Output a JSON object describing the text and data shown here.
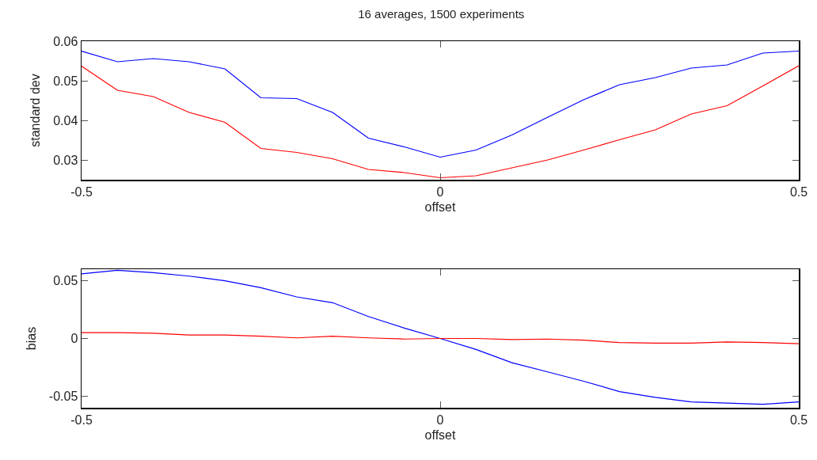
{
  "chart_data": [
    {
      "type": "line",
      "title": "16 averages, 1500 experiments",
      "xlabel": "offset",
      "ylabel": "standard dev",
      "x": [
        -0.5,
        -0.45,
        -0.4,
        -0.35,
        -0.3,
        -0.25,
        -0.2,
        -0.15,
        -0.1,
        -0.05,
        0,
        0.05,
        0.1,
        0.15,
        0.2,
        0.25,
        0.3,
        0.35,
        0.4,
        0.45,
        0.5
      ],
      "series": [
        {
          "color": "#0000ff",
          "values": [
            0.0575,
            0.0548,
            0.0556,
            0.0548,
            0.053,
            0.0457,
            0.0455,
            0.042,
            0.0355,
            0.0333,
            0.0307,
            0.0325,
            0.0363,
            0.0408,
            0.0452,
            0.049,
            0.0508,
            0.0532,
            0.054,
            0.057,
            0.0575
          ]
        },
        {
          "color": "#ff0000",
          "values": [
            0.0537,
            0.0476,
            0.046,
            0.042,
            0.0395,
            0.0329,
            0.0319,
            0.0303,
            0.0276,
            0.0268,
            0.0255,
            0.026,
            0.028,
            0.03,
            0.0325,
            0.0351,
            0.0376,
            0.0416,
            0.0437,
            0.0487,
            0.0538
          ]
        }
      ],
      "xlim": [
        -0.5,
        0.5
      ],
      "xticks": [
        -0.5,
        0,
        0.5
      ],
      "ylim": [
        0.025,
        0.06
      ],
      "yticks": [
        0.03,
        0.04,
        0.05,
        0.06
      ],
      "grid": false,
      "marker": "none",
      "line_style": "solid"
    },
    {
      "type": "line",
      "xlabel": "offset",
      "ylabel": "bias",
      "x": [
        -0.5,
        -0.45,
        -0.4,
        -0.35,
        -0.3,
        -0.25,
        -0.2,
        -0.15,
        -0.1,
        -0.05,
        0,
        0.05,
        0.1,
        0.15,
        0.2,
        0.25,
        0.3,
        0.35,
        0.4,
        0.45,
        0.5
      ],
      "series": [
        {
          "color": "#0000ff",
          "values": [
            0.056,
            0.059,
            0.057,
            0.054,
            0.05,
            0.044,
            0.036,
            0.031,
            0.019,
            0.009,
            0,
            -0.0095,
            -0.021,
            -0.029,
            -0.037,
            -0.046,
            -0.051,
            -0.055,
            -0.056,
            -0.057,
            -0.055
          ]
        },
        {
          "color": "#ff0000",
          "values": [
            0.005,
            0.005,
            0.0045,
            0.003,
            0.003,
            0.002,
            0.0005,
            0.002,
            0.0005,
            -0.0005,
            0,
            0,
            -0.001,
            -0.0005,
            -0.0015,
            -0.0035,
            -0.004,
            -0.004,
            -0.003,
            -0.0035,
            -0.0045
          ]
        }
      ],
      "xlim": [
        -0.5,
        0.5
      ],
      "xticks": [
        -0.5,
        0,
        0.5
      ],
      "ylim": [
        -0.06,
        0.06
      ],
      "yticks": [
        -0.05,
        0,
        0.05
      ],
      "grid": false,
      "marker": "none",
      "line_style": "solid"
    }
  ]
}
